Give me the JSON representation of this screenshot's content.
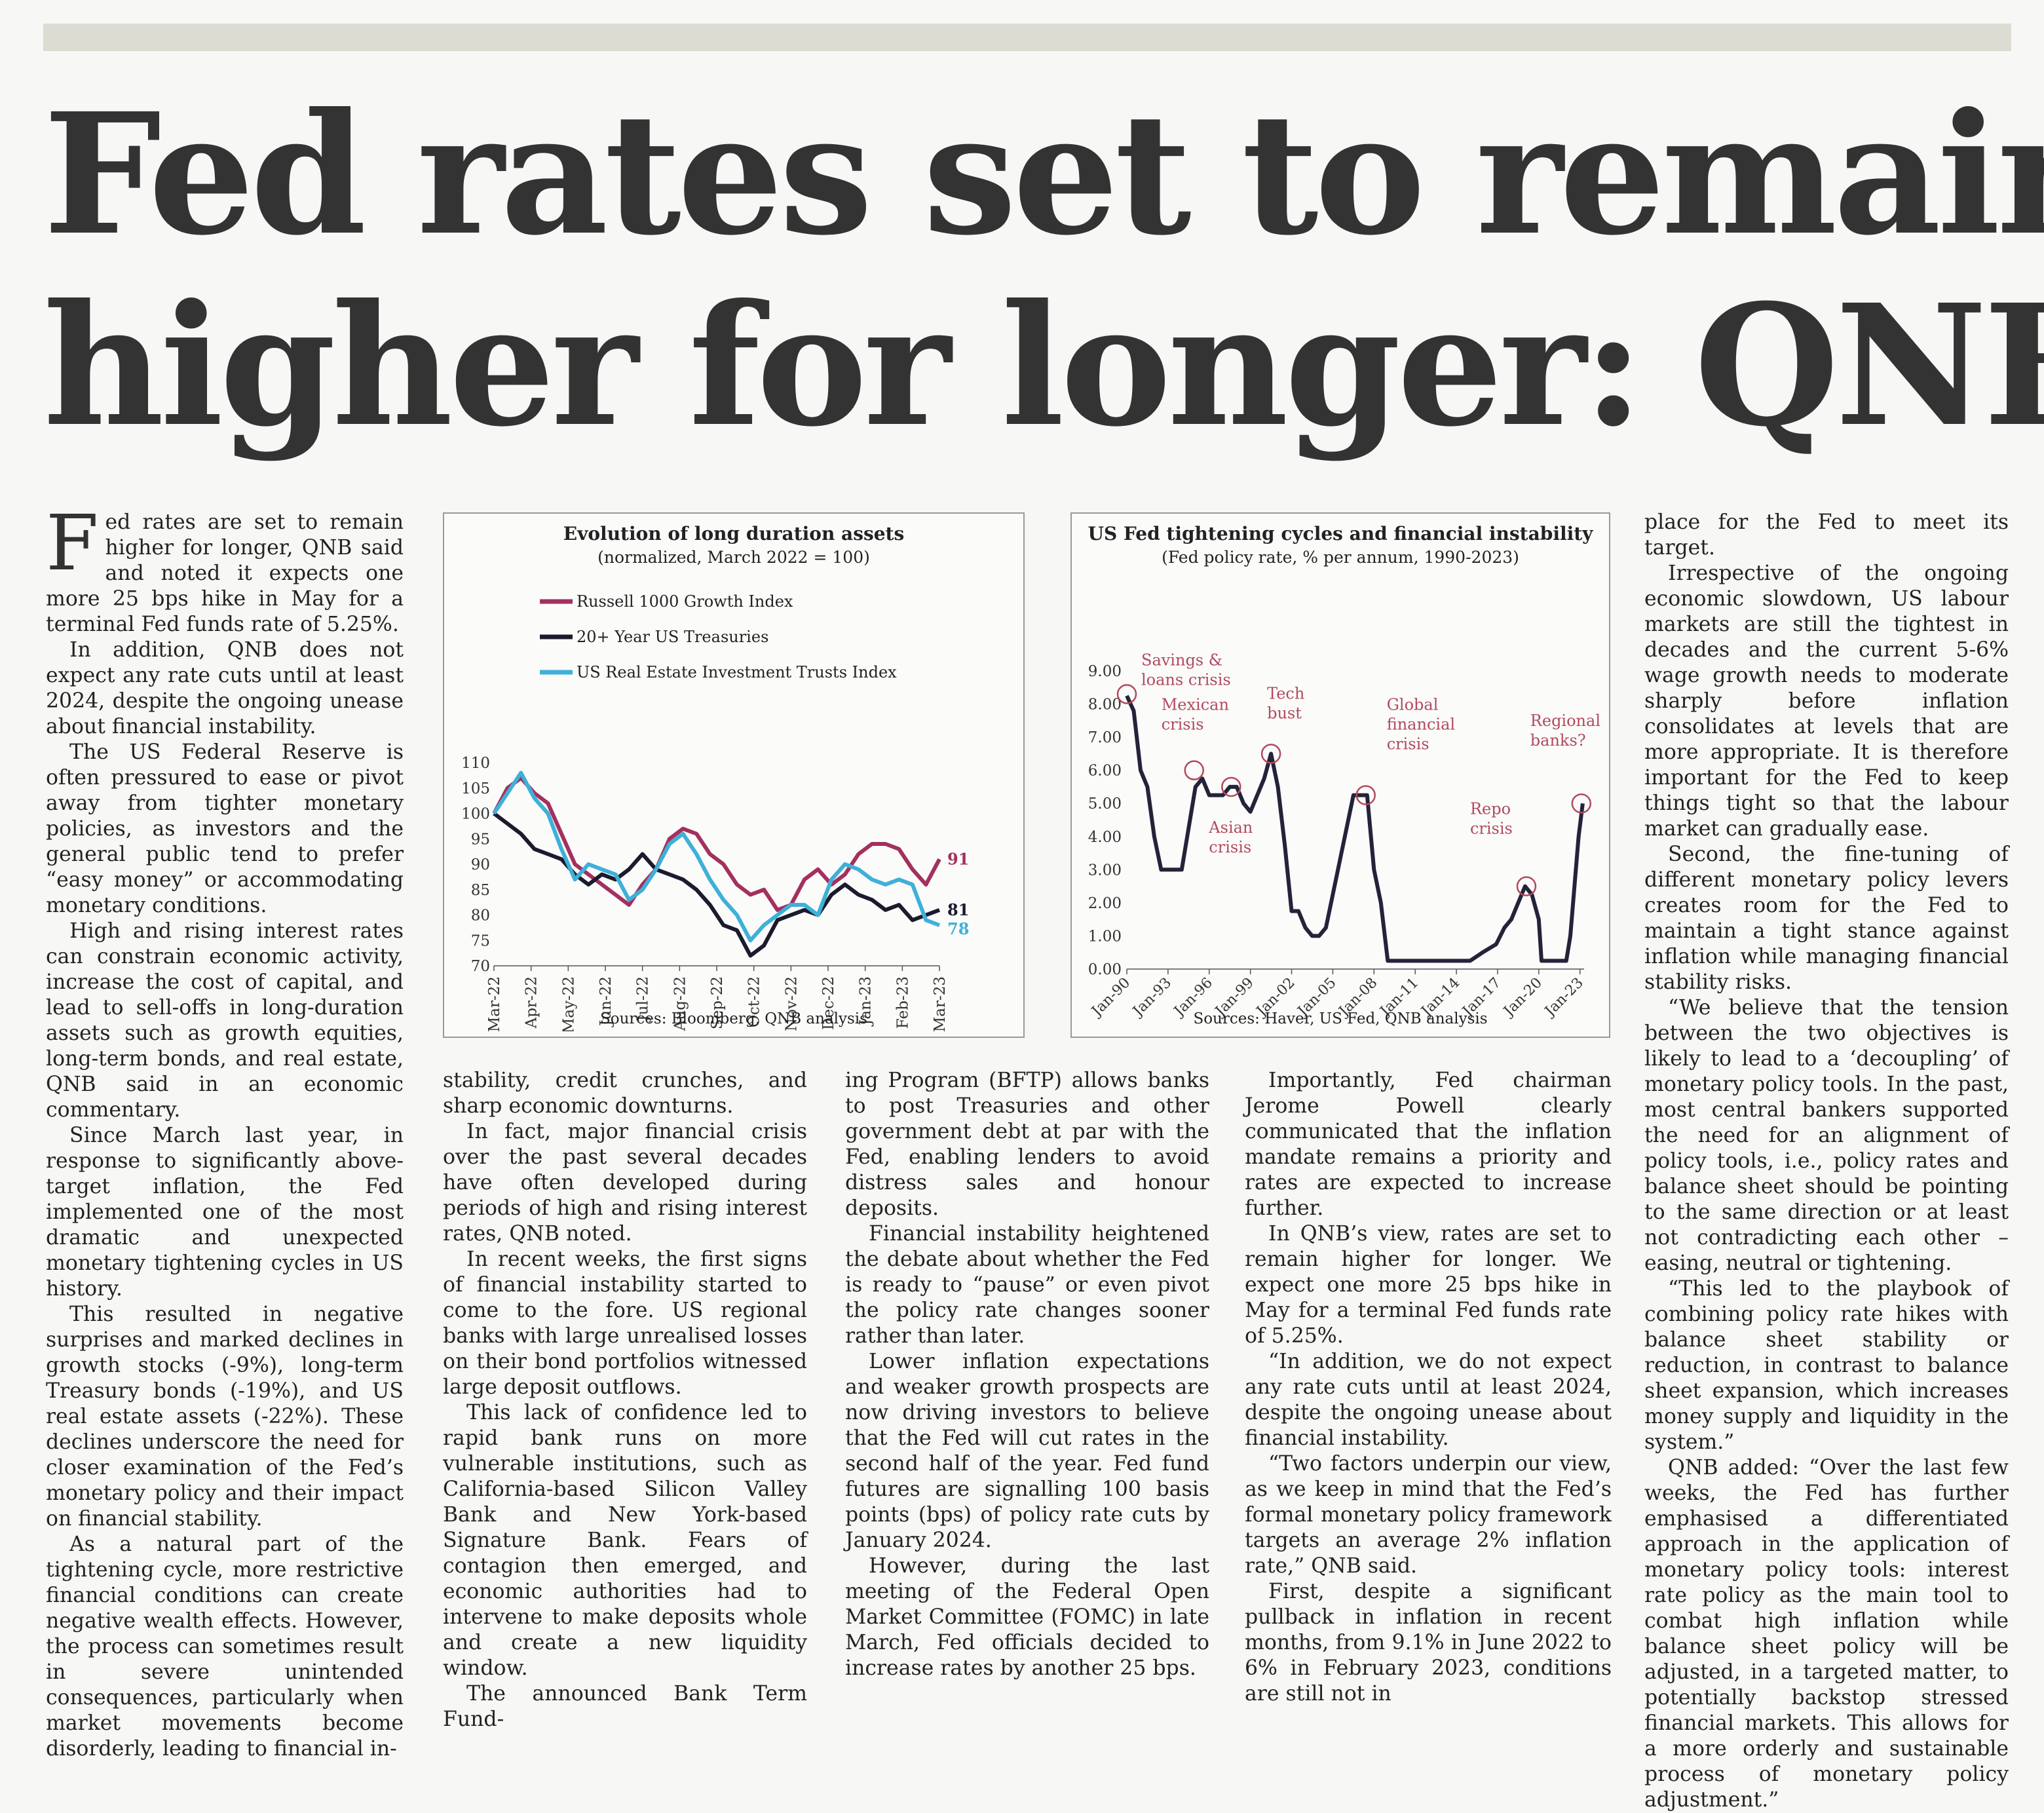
{
  "headline": {
    "line1": "Fed rates set to remain",
    "line2": "higher for longer: QNB"
  },
  "article": {
    "dropcap": "F",
    "col1": [
      "ed rates are set to remain higher for longer, QNB said and noted it expects one more 25 bps hike in May for a terminal Fed funds rate of 5.25%.",
      "In addition, QNB does not expect any rate cuts until at least 2024, despite the ongoing unease about financial instability.",
      "The US Federal Reserve is often pressured to ease or pivot away from tighter monetary policies, as investors and the general public tend to prefer “easy money” or accommodating monetary conditions.",
      "High and rising interest rates can constrain economic activity, increase the cost of capital, and lead to sell-offs in long-duration assets such as growth equities, long-term bonds, and real estate, QNB said in an economic commentary.",
      "Since March last year, in response to significantly above-target inflation, the Fed implemented one of the most dramatic and unexpected monetary tightening cycles in US history.",
      "This resulted in negative surprises and marked declines in growth stocks (-9%), long-term Treasury bonds (-19%), and US real estate assets (-22%). These declines underscore the need for closer examination of the Fed’s monetary policy and their impact on financial stability.",
      "As a natural part of the tightening cycle, more restrictive financial conditions can create negative wealth effects. However, the process can sometimes result in severe unintended consequences, particularly when market movements become disorderly, leading to financial in-"
    ],
    "col2": [
      "stability, credit crunches, and sharp economic downturns.",
      "In fact, major financial crisis over the past several decades have often developed during periods of high and rising interest rates, QNB noted.",
      "In recent weeks, the first signs of financial instability started to come to the fore. US regional banks with large unrealised losses on their bond portfolios witnessed large deposit outflows.",
      "This lack of confidence led to rapid bank runs on more vulnerable institutions, such as California-based Silicon Valley Bank and New York-based Signature Bank. Fears of contagion then emerged, and economic authorities had to intervene to make deposits whole and create a new liquidity window.",
      "The announced Bank Term Fund-"
    ],
    "col3": [
      "ing Program (BFTP) allows banks to post Treasuries and other government debt at par with the Fed, enabling lenders to avoid distress sales and honour deposits.",
      "Financial instability heightened the debate about whether the Fed is ready to “pause” or even pivot the policy rate changes sooner rather than later.",
      "Lower inflation expectations and weaker growth prospects are now driving investors to believe that the Fed will cut rates in the second half of the year. Fed fund futures are signalling 100 basis points (bps) of policy rate cuts by January 2024.",
      "However, during the last meeting of the Federal Open Market Committee (FOMC) in late March, Fed officials decided to increase rates by another 25 bps."
    ],
    "col4": [
      "Importantly, Fed chairman Jerome Powell clearly communicated that the inflation mandate remains a priority and rates are expected to increase further.",
      "In QNB’s view, rates are set to remain higher for longer. We expect one more 25 bps hike in May for a terminal Fed funds rate of 5.25%.",
      "“In addition, we do not expect any rate cuts until at least 2024, despite the ongoing unease about financial instability.",
      "“Two factors underpin our view, as we keep in mind that the Fed’s formal monetary policy framework targets an average 2% inflation rate,” QNB said.",
      "First, despite a significant pullback in inflation in recent months, from 9.1% in June 2022 to 6% in February 2023, conditions are still not in"
    ],
    "col5": [
      "place for the Fed to meet its target.",
      "Irrespective of the ongoing economic slowdown, US labour markets are still the tightest in decades and the current 5-6% wage growth needs to moderate sharply before inflation consolidates at levels that are more appropriate. It is therefore important for the Fed to keep things tight so that the labour market can gradually ease.",
      "Second, the fine-tuning of different monetary policy levers creates room for the Fed to maintain a tight stance against inflation while managing financial stability risks.",
      "“We believe that the tension between the two objectives is likely to lead to a ‘decoupling’ of monetary policy tools. In the past, most central bankers supported the need for an alignment of policy tools, i.e., policy rates and balance sheet should be pointing to the same direction or at least not contradicting each other – easing, neutral or tightening.",
      "“This led to the playbook of combining policy rate hikes with balance sheet stability or reduction, in contrast to balance sheet expansion, which increases money supply and liquidity in the system.”",
      "QNB added: “Over the last few weeks, the Fed has further emphasised a differentiated approach in the application of monetary policy tools: interest rate policy as the main tool to combat high inflation while balance sheet policy will be adjusted, in a targeted matter, to potentially backstop stressed financial markets. This allows for a more orderly and sustainable process of monetary policy adjustment.”"
    ]
  },
  "colors": {
    "text": "#222222",
    "russell": "#a3305e",
    "treasuries": "#1b1b2e",
    "reit": "#3fb0d8",
    "fed": "#23233a",
    "crisis": "#b24a5c"
  },
  "chart_data": [
    {
      "type": "line",
      "title": "Evolution of long duration assets",
      "subtitle": "(normalized, March 2022 = 100)",
      "source": "Sources: Bloomberg, QNB analysis",
      "x_ticks": [
        "Mar-22",
        "Apr-22",
        "May-22",
        "Jun-22",
        "Jul-22",
        "Aug-22",
        "Sep-22",
        "Oct-22",
        "Nov-22",
        "Dec-22",
        "Jan-23",
        "Feb-23",
        "Mar-23"
      ],
      "y_ticks": [
        70,
        75,
        80,
        85,
        90,
        95,
        100,
        105,
        110
      ],
      "ylim": [
        70,
        110
      ],
      "legend": "top-left",
      "series": [
        {
          "name": "Russell 1000 Growth Index",
          "end_label": "91",
          "values": [
            100,
            105,
            107,
            104,
            102,
            96,
            90,
            88,
            86,
            84,
            82,
            86,
            89,
            95,
            97,
            96,
            92,
            90,
            86,
            84,
            85,
            81,
            82,
            87,
            89,
            86,
            88,
            92,
            94,
            94,
            93,
            89,
            86,
            91
          ]
        },
        {
          "name": "20+ Year US Treasuries",
          "end_label": "81",
          "values": [
            100,
            98,
            96,
            93,
            92,
            91,
            88,
            86,
            88,
            87,
            89,
            92,
            89,
            88,
            87,
            85,
            82,
            78,
            77,
            72,
            74,
            79,
            80,
            81,
            80,
            84,
            86,
            84,
            83,
            81,
            82,
            79,
            80,
            81
          ]
        },
        {
          "name": "US Real Estate Investment Trusts Index",
          "end_label": "78",
          "values": [
            100,
            104,
            108,
            103,
            100,
            93,
            87,
            90,
            89,
            88,
            83,
            85,
            89,
            94,
            96,
            92,
            87,
            83,
            80,
            75,
            78,
            80,
            82,
            82,
            80,
            87,
            90,
            89,
            87,
            86,
            87,
            86,
            79,
            78
          ]
        }
      ]
    },
    {
      "type": "line",
      "title": "US Fed tightening cycles and financial instability",
      "subtitle": "(Fed policy rate, % per annum, 1990-2023)",
      "source": "Sources: Haver, US Fed, QNB analysis",
      "x_ticks": [
        "Jan-90",
        "Jan-93",
        "Jan-96",
        "Jan-99",
        "Jan-02",
        "Jan-05",
        "Jan-08",
        "Jan-11",
        "Jan-14",
        "Jan-17",
        "Jan-20",
        "Jan-23"
      ],
      "y_ticks": [
        "0.00",
        "1.00",
        "2.00",
        "3.00",
        "4.00",
        "5.00",
        "6.00",
        "7.00",
        "8.00",
        "9.00"
      ],
      "ylim": [
        0,
        9
      ],
      "series": [
        {
          "name": "",
          "x": [
            1990.0,
            1990.5,
            1991.0,
            1991.5,
            1992.0,
            1992.5,
            1993.0,
            1993.5,
            1994.0,
            1994.5,
            1995.0,
            1995.5,
            1996.0,
            1996.5,
            1997.0,
            1997.5,
            1998.0,
            1998.5,
            1999.0,
            1999.5,
            2000.0,
            2000.5,
            2001.0,
            2001.5,
            2002.0,
            2002.5,
            2003.0,
            2003.5,
            2004.0,
            2004.5,
            2005.0,
            2005.5,
            2006.0,
            2006.5,
            2007.0,
            2007.5,
            2008.0,
            2008.5,
            2009.0,
            2012.0,
            2015.0,
            2015.9,
            2016.9,
            2017.5,
            2018.0,
            2018.5,
            2019.0,
            2019.5,
            2020.0,
            2020.2,
            2021.0,
            2022.0,
            2022.3,
            2022.6,
            2022.9,
            2023.2
          ],
          "y": [
            8.25,
            7.8,
            6.0,
            5.5,
            4.0,
            3.0,
            3.0,
            3.0,
            3.0,
            4.25,
            5.5,
            5.75,
            5.25,
            5.25,
            5.25,
            5.5,
            5.5,
            5.0,
            4.75,
            5.25,
            5.75,
            6.5,
            5.5,
            3.75,
            1.75,
            1.75,
            1.25,
            1.0,
            1.0,
            1.25,
            2.25,
            3.25,
            4.25,
            5.25,
            5.25,
            5.25,
            3.0,
            2.0,
            0.25,
            0.25,
            0.25,
            0.5,
            0.75,
            1.25,
            1.5,
            2.0,
            2.5,
            2.25,
            1.5,
            0.25,
            0.25,
            0.25,
            1.0,
            2.5,
            4.0,
            5.0
          ]
        }
      ],
      "annotations": [
        {
          "label": [
            "Savings &",
            "loans crisis"
          ],
          "x": 1990.0,
          "y": 8.3
        },
        {
          "label": [
            "Mexican",
            "crisis"
          ],
          "x": 1994.9,
          "y": 6.0
        },
        {
          "label": [
            "Asian",
            "crisis"
          ],
          "x": 1997.6,
          "y": 5.5
        },
        {
          "label": [
            "Tech",
            "bust"
          ],
          "x": 2000.5,
          "y": 6.5
        },
        {
          "label": [
            "Global",
            "financial",
            "crisis"
          ],
          "x": 2007.4,
          "y": 5.25
        },
        {
          "label": [
            "Repo",
            "crisis"
          ],
          "x": 2019.1,
          "y": 2.5
        },
        {
          "label": [
            "Regional",
            "banks?"
          ],
          "x": 2023.1,
          "y": 5.0
        }
      ]
    }
  ]
}
